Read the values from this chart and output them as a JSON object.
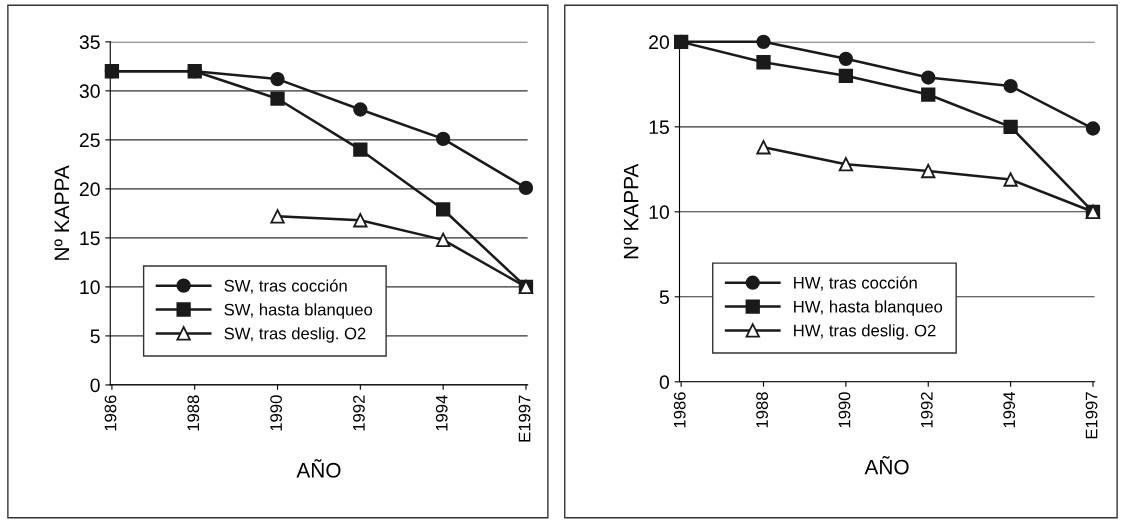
{
  "chart_data": [
    {
      "type": "line",
      "xlabel": "AÑO",
      "ylabel": "Nº KAPPA",
      "categories": [
        "1986",
        "1988",
        "1990",
        "1992",
        "1994",
        "E1997"
      ],
      "ylim": [
        0,
        35
      ],
      "yticks": [
        0,
        5,
        10,
        15,
        20,
        25,
        30,
        35
      ],
      "grid": "y",
      "legend": "bottom left",
      "line_style": "solid",
      "series": [
        {
          "name": "SW, tras cocción",
          "color": "#1a1a1a",
          "marker": "circle",
          "values": [
            32,
            32,
            31.2,
            28.1,
            25.1,
            20.1
          ]
        },
        {
          "name": "SW, hasta blanqueo",
          "color": "#1a1a1a",
          "marker": "square",
          "values": [
            32,
            32,
            29.2,
            24,
            17.9,
            10
          ]
        },
        {
          "name": "SW, tras deslig. O2",
          "color": "#1a1a1a",
          "marker": "triangle",
          "values": [
            null,
            null,
            17.2,
            16.8,
            14.8,
            10
          ]
        }
      ]
    },
    {
      "type": "line",
      "xlabel": "AÑO",
      "ylabel": "Nº KAPPA",
      "categories": [
        "1986",
        "1988",
        "1990",
        "1992",
        "1994",
        "E1997"
      ],
      "ylim": [
        0,
        20
      ],
      "yticks": [
        0,
        5,
        10,
        15,
        20
      ],
      "grid": "y",
      "legend": "bottom left",
      "line_style": "solid",
      "series": [
        {
          "name": "HW, tras cocción",
          "color": "#1a1a1a",
          "marker": "circle",
          "values": [
            20,
            20,
            19,
            17.9,
            17.4,
            14.9
          ]
        },
        {
          "name": "HW, hasta blanqueo",
          "color": "#1a1a1a",
          "marker": "square",
          "values": [
            20,
            18.8,
            18,
            16.9,
            15,
            10
          ]
        },
        {
          "name": "HW, tras deslig. O2",
          "color": "#1a1a1a",
          "marker": "triangle",
          "values": [
            null,
            13.8,
            12.8,
            12.4,
            11.9,
            10
          ]
        }
      ]
    }
  ]
}
